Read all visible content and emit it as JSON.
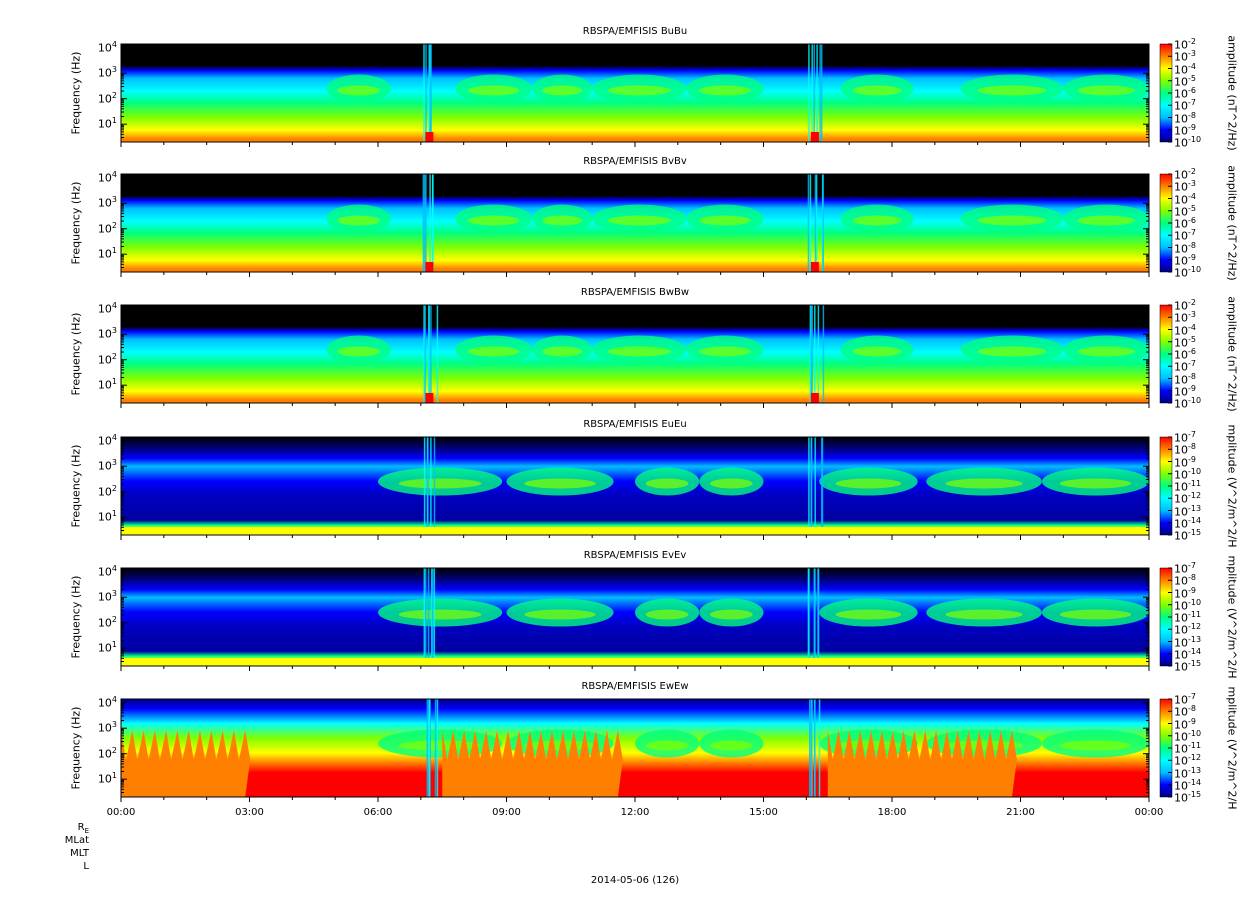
{
  "chart_data": {
    "type": "heatmap",
    "date_label": "2014-05-06 (126)",
    "x_ticks": [
      "00:00",
      "03:00",
      "06:00",
      "09:00",
      "12:00",
      "15:00",
      "18:00",
      "21:00",
      "00:00"
    ],
    "xlim_hours": [
      0,
      24
    ],
    "ephemeris_labels": [
      "RE",
      "MLat",
      "MLT",
      "L"
    ],
    "y_scale": "log",
    "panels": [
      {
        "title": "RBSPA/EMFISIS  BuBu",
        "ylabel": "Frequency (Hz)",
        "ylim": [
          2,
          14000
        ],
        "y_ticks": [
          "10^1",
          "10^2",
          "10^3",
          "10^4"
        ],
        "zlabel": "amplitude (nT^2/Hz)",
        "z_ticks": [
          "10^-2",
          "10^-3",
          "10^-4",
          "10^-5",
          "10^-6",
          "10^-7",
          "10^-8",
          "10^-9",
          "10^-10"
        ],
        "zlim": [
          -10,
          -2
        ]
      },
      {
        "title": "RBSPA/EMFISIS  BvBv",
        "ylabel": "Frequency (Hz)",
        "ylim": [
          2,
          14000
        ],
        "y_ticks": [
          "10^1",
          "10^2",
          "10^3",
          "10^4"
        ],
        "zlabel": "amplitude (nT^2/Hz)",
        "z_ticks": [
          "10^-2",
          "10^-3",
          "10^-4",
          "10^-5",
          "10^-6",
          "10^-7",
          "10^-8",
          "10^-9",
          "10^-10"
        ],
        "zlim": [
          -10,
          -2
        ]
      },
      {
        "title": "RBSPA/EMFISIS  BwBw",
        "ylabel": "Frequency (Hz)",
        "ylim": [
          2,
          14000
        ],
        "y_ticks": [
          "10^1",
          "10^2",
          "10^3",
          "10^4"
        ],
        "zlabel": "amplitude (nT^2/Hz)",
        "z_ticks": [
          "10^-2",
          "10^-3",
          "10^-4",
          "10^-5",
          "10^-6",
          "10^-7",
          "10^-8",
          "10^-9",
          "10^-10"
        ],
        "zlim": [
          -10,
          -2
        ]
      },
      {
        "title": "RBSPA/EMFISIS  EuEu",
        "ylabel": "Frequency (Hz)",
        "ylim": [
          2,
          14000
        ],
        "y_ticks": [
          "10^1",
          "10^2",
          "10^3",
          "10^4"
        ],
        "zlabel": "mplitude (V^2/m^2/H",
        "z_ticks": [
          "10^-7",
          "10^-8",
          "10^-9",
          "10^-10",
          "10^-11",
          "10^-12",
          "10^-13",
          "10^-14",
          "10^-15"
        ],
        "zlim": [
          -15,
          -7
        ]
      },
      {
        "title": "RBSPA/EMFISIS  EvEv",
        "ylabel": "Frequency (Hz)",
        "ylim": [
          2,
          14000
        ],
        "y_ticks": [
          "10^1",
          "10^2",
          "10^3",
          "10^4"
        ],
        "zlabel": "mplitude (V^2/m^2/H",
        "z_ticks": [
          "10^-7",
          "10^-8",
          "10^-9",
          "10^-10",
          "10^-11",
          "10^-12",
          "10^-13",
          "10^-14",
          "10^-15"
        ],
        "zlim": [
          -15,
          -7
        ]
      },
      {
        "title": "RBSPA/EMFISIS  EwEw",
        "ylabel": "Frequency (Hz)",
        "ylim": [
          2,
          14000
        ],
        "y_ticks": [
          "10^1",
          "10^2",
          "10^3",
          "10^4"
        ],
        "zlabel": "mplitude (V^2/m^2/H",
        "z_ticks": [
          "10^-7",
          "10^-8",
          "10^-9",
          "10^-10",
          "10^-11",
          "10^-12",
          "10^-13",
          "10^-14",
          "10^-15"
        ],
        "zlim": [
          -15,
          -7
        ]
      }
    ],
    "colormap": [
      "#000080",
      "#0000ff",
      "#00bfff",
      "#00ffff",
      "#00ff80",
      "#80ff00",
      "#ffff00",
      "#ff8000",
      "#ff0000"
    ]
  }
}
